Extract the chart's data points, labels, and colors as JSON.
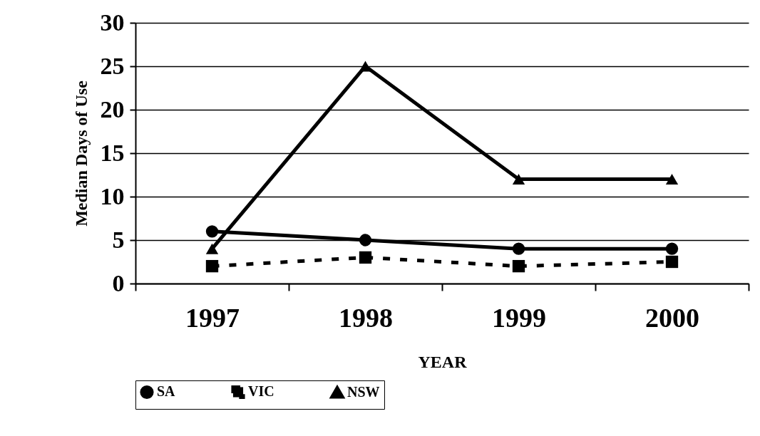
{
  "chart_data": {
    "type": "line",
    "xlabel": "YEAR",
    "ylabel": "Median Days of Use",
    "categories": [
      "1997",
      "1998",
      "1999",
      "2000"
    ],
    "series": [
      {
        "name": "SA",
        "color": "#000000",
        "values": [
          6,
          5,
          4,
          4
        ],
        "marker": "circle",
        "line_style": "solid"
      },
      {
        "name": "VIC",
        "color": "#000000",
        "values": [
          2,
          3,
          2,
          2.5
        ],
        "marker": "square",
        "line_style": "dashed"
      },
      {
        "name": "NSW",
        "color": "#000000",
        "values": [
          4,
          25,
          12,
          12
        ],
        "marker": "triangle",
        "line_style": "solid"
      }
    ],
    "ylim": [
      0,
      30
    ],
    "yticks": [
      0,
      5,
      10,
      15,
      20,
      25,
      30
    ],
    "grid": "y",
    "legend": "bottom"
  }
}
